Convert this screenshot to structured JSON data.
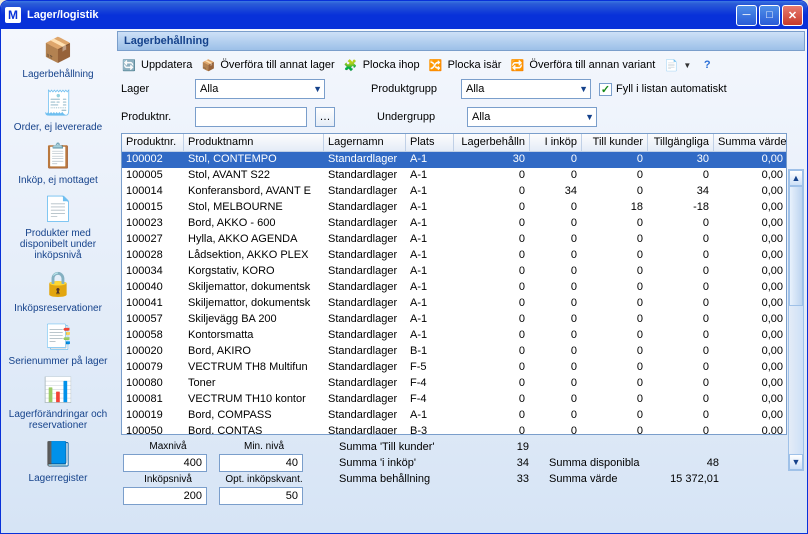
{
  "window": {
    "title": "Lager/logistik"
  },
  "section": {
    "title": "Lagerbehållning"
  },
  "toolbar": {
    "refresh": "Uppdatera",
    "transfer_warehouse": "Överföra till annat lager",
    "pick": "Plocka ihop",
    "split": "Plocka isär",
    "transfer_variant": "Överföra till annan variant"
  },
  "filters": {
    "lager_label": "Lager",
    "lager_value": "Alla",
    "produktnr_label": "Produktnr.",
    "produktnr_value": "",
    "produktgrupp_label": "Produktgrupp",
    "produktgrupp_value": "Alla",
    "undergrupp_label": "Undergrupp",
    "undergrupp_value": "Alla",
    "autofill_label": "Fyll i listan automatiskt",
    "autofill_checked": true
  },
  "sidebar": [
    {
      "label": "Lagerbehållning",
      "icon": "📦"
    },
    {
      "label": "Order, ej levererade",
      "icon": "🧾"
    },
    {
      "label": "Inköp, ej mottaget",
      "icon": "📋"
    },
    {
      "label": "Produkter med disponibelt under inköpsnivå",
      "icon": "📄"
    },
    {
      "label": "Inköpsreservationer",
      "icon": "🔒"
    },
    {
      "label": "Serienummer på lager",
      "icon": "📑"
    },
    {
      "label": "Lagerförändringar och reservationer",
      "icon": "📊"
    },
    {
      "label": "Lagerregister",
      "icon": "📘"
    }
  ],
  "grid": {
    "columns": [
      "Produktnr.",
      "Produktnamn",
      "Lagernamn",
      "Plats",
      "Lagerbehålln",
      "I inköp",
      "Till kunder",
      "Tillgängliga",
      "Summa värde"
    ],
    "column_align": [
      "left",
      "left",
      "left",
      "left",
      "right",
      "right",
      "right",
      "right",
      "right"
    ],
    "selected_index": 0,
    "rows": [
      [
        "100002",
        "Stol, CONTEMPO",
        "Standardlager",
        "A-1",
        "30",
        "0",
        "0",
        "30",
        "0,00"
      ],
      [
        "100005",
        "Stol, AVANT S22",
        "Standardlager",
        "A-1",
        "0",
        "0",
        "0",
        "0",
        "0,00"
      ],
      [
        "100014",
        "Konferansbord, AVANT E",
        "Standardlager",
        "A-1",
        "0",
        "34",
        "0",
        "34",
        "0,00"
      ],
      [
        "100015",
        "Stol, MELBOURNE",
        "Standardlager",
        "A-1",
        "0",
        "0",
        "18",
        "-18",
        "0,00"
      ],
      [
        "100023",
        "Bord, AKKO - 600",
        "Standardlager",
        "A-1",
        "0",
        "0",
        "0",
        "0",
        "0,00"
      ],
      [
        "100027",
        "Hylla, AKKO AGENDA",
        "Standardlager",
        "A-1",
        "0",
        "0",
        "0",
        "0",
        "0,00"
      ],
      [
        "100028",
        "Lådsektion, AKKO PLEX",
        "Standardlager",
        "A-1",
        "0",
        "0",
        "0",
        "0",
        "0,00"
      ],
      [
        "100034",
        "Korgstativ, KORO",
        "Standardlager",
        "A-1",
        "0",
        "0",
        "0",
        "0",
        "0,00"
      ],
      [
        "100040",
        "Skiljemattor, dokumentsk",
        "Standardlager",
        "A-1",
        "0",
        "0",
        "0",
        "0",
        "0,00"
      ],
      [
        "100041",
        "Skiljemattor, dokumentsk",
        "Standardlager",
        "A-1",
        "0",
        "0",
        "0",
        "0",
        "0,00"
      ],
      [
        "100057",
        "Skiljevägg BA 200",
        "Standardlager",
        "A-1",
        "0",
        "0",
        "0",
        "0",
        "0,00"
      ],
      [
        "100058",
        "Kontorsmatta",
        "Standardlager",
        "A-1",
        "0",
        "0",
        "0",
        "0",
        "0,00"
      ],
      [
        "100020",
        "Bord, AKIRO",
        "Standardlager",
        "B-1",
        "0",
        "0",
        "0",
        "0",
        "0,00"
      ],
      [
        "100079",
        "VECTRUM TH8 Multifun",
        "Standardlager",
        "F-5",
        "0",
        "0",
        "0",
        "0",
        "0,00"
      ],
      [
        "100080",
        "Toner",
        "Standardlager",
        "F-4",
        "0",
        "0",
        "0",
        "0",
        "0,00"
      ],
      [
        "100081",
        "VECTRUM TH10 kontor",
        "Standardlager",
        "F-4",
        "0",
        "0",
        "0",
        "0",
        "0,00"
      ],
      [
        "100019",
        "Bord, COMPASS",
        "Standardlager",
        "A-1",
        "0",
        "0",
        "0",
        "0",
        "0,00"
      ],
      [
        "100050",
        "Bord, CONTAS",
        "Standardlager",
        "B-3",
        "0",
        "0",
        "0",
        "0",
        "0,00"
      ]
    ]
  },
  "footer": {
    "max_label": "Maxnivå",
    "max_value": "400",
    "min_label": "Min. nivå",
    "min_value": "40",
    "inkop_label": "Inköpsnivå",
    "inkop_value": "200",
    "opt_label": "Opt. inköpskvant.",
    "opt_value": "50",
    "summa_till_kunder_label": "Summa 'Till kunder'",
    "summa_till_kunder_value": "19",
    "summa_iinkop_label": "Summa 'i inköp'",
    "summa_iinkop_value": "34",
    "summa_behallning_label": "Summa behållning",
    "summa_behallning_value": "33",
    "summa_disponibla_label": "Summa disponibla",
    "summa_disponibla_value": "48",
    "summa_varde_label": "Summa värde",
    "summa_varde_value": "15 372,01"
  },
  "colors": {
    "titlebar_start": "#3b77e3",
    "titlebar_end": "#0831d9",
    "selection": "#316ac5",
    "panel_text": "#15428b"
  }
}
